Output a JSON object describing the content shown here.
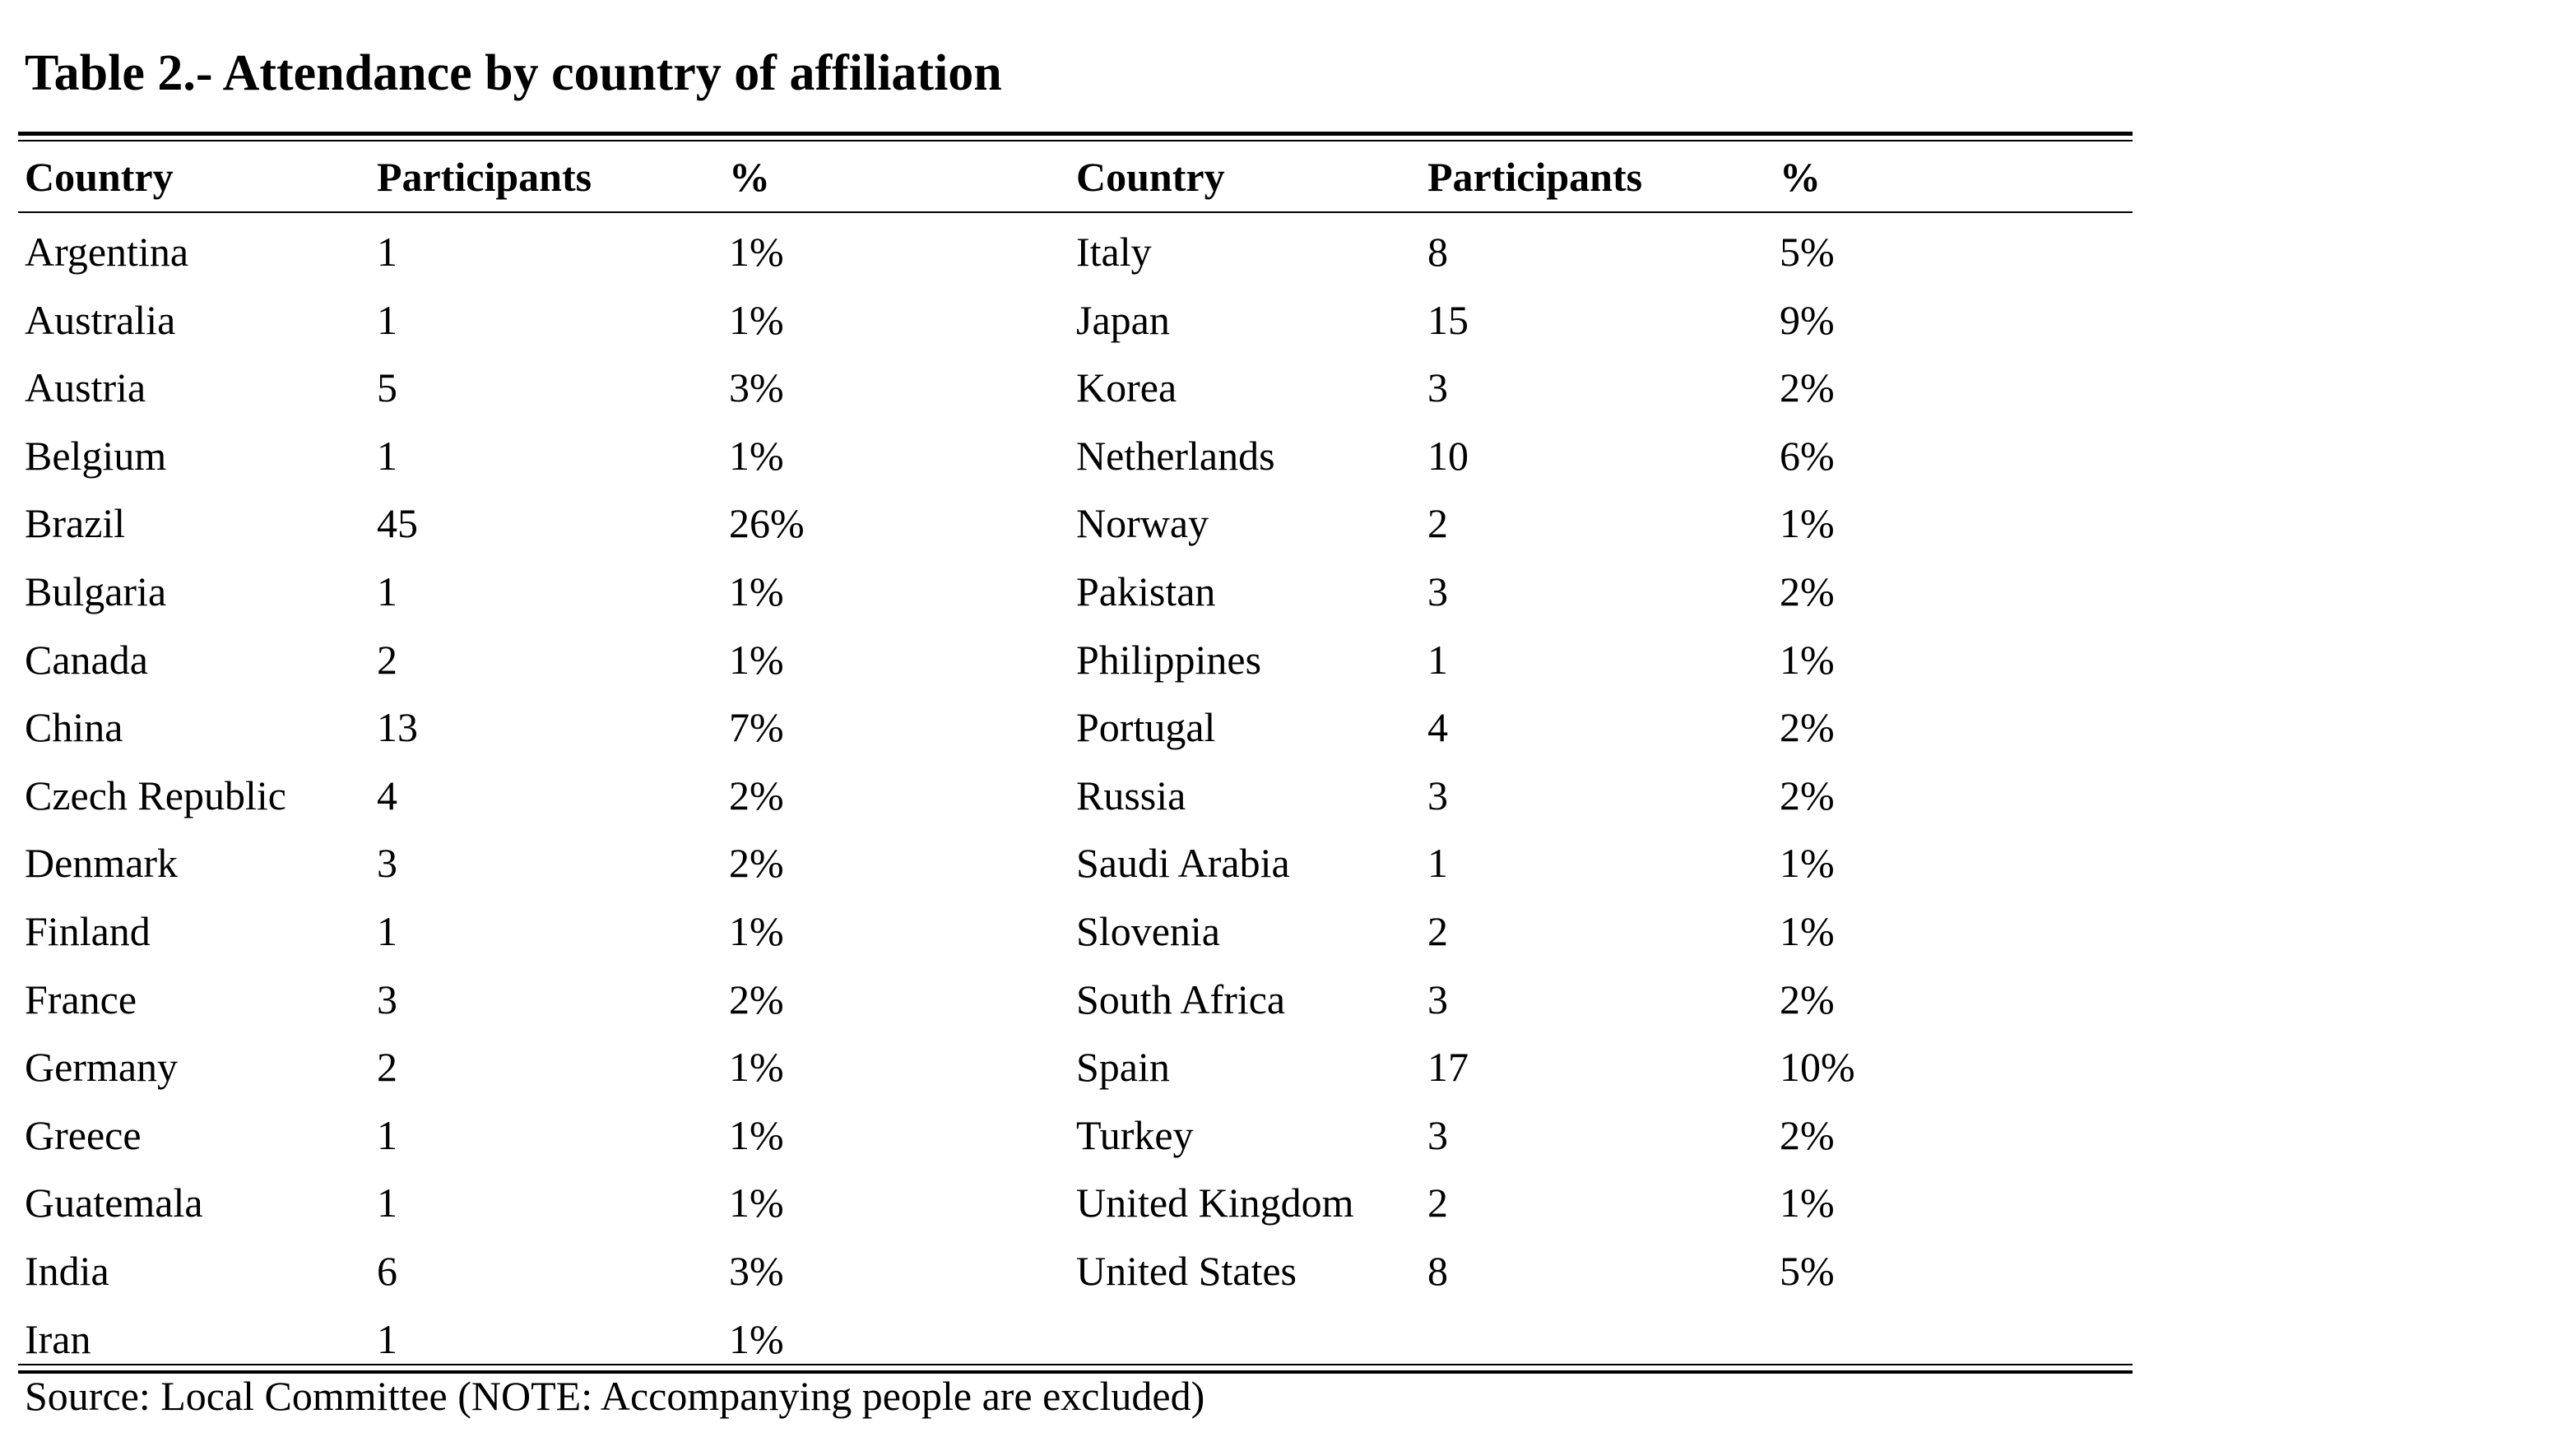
{
  "title": "Table 2.- Attendance by country of affiliation",
  "headers": {
    "left": {
      "country": "Country",
      "participants": "Participants",
      "percent": "%"
    },
    "right": {
      "country": "Country",
      "participants": "Participants",
      "percent": "%"
    }
  },
  "left_rows": [
    {
      "country": "Argentina",
      "participants": "1",
      "percent": "1%"
    },
    {
      "country": "Australia",
      "participants": "1",
      "percent": "1%"
    },
    {
      "country": "Austria",
      "participants": "5",
      "percent": "3%"
    },
    {
      "country": "Belgium",
      "participants": "1",
      "percent": "1%"
    },
    {
      "country": "Brazil",
      "participants": "45",
      "percent": "26%"
    },
    {
      "country": "Bulgaria",
      "participants": "1",
      "percent": "1%"
    },
    {
      "country": "Canada",
      "participants": "2",
      "percent": "1%"
    },
    {
      "country": "China",
      "participants": "13",
      "percent": "7%"
    },
    {
      "country": "Czech Republic",
      "participants": "4",
      "percent": "2%"
    },
    {
      "country": "Denmark",
      "participants": "3",
      "percent": "2%"
    },
    {
      "country": "Finland",
      "participants": "1",
      "percent": "1%"
    },
    {
      "country": "France",
      "participants": "3",
      "percent": "2%"
    },
    {
      "country": "Germany",
      "participants": "2",
      "percent": "1%"
    },
    {
      "country": "Greece",
      "participants": "1",
      "percent": "1%"
    },
    {
      "country": "Guatemala",
      "participants": "1",
      "percent": "1%"
    },
    {
      "country": "India",
      "participants": "6",
      "percent": "3%"
    },
    {
      "country": "Iran",
      "participants": "1",
      "percent": "1%"
    }
  ],
  "right_rows": [
    {
      "country": "Italy",
      "participants": "8",
      "percent": "5%"
    },
    {
      "country": "Japan",
      "participants": "15",
      "percent": "9%"
    },
    {
      "country": "Korea",
      "participants": "3",
      "percent": "2%"
    },
    {
      "country": "Netherlands",
      "participants": "10",
      "percent": "6%"
    },
    {
      "country": "Norway",
      "participants": "2",
      "percent": "1%"
    },
    {
      "country": "Pakistan",
      "participants": "3",
      "percent": "2%"
    },
    {
      "country": "Philippines",
      "participants": "1",
      "percent": "1%"
    },
    {
      "country": "Portugal",
      "participants": "4",
      "percent": "2%"
    },
    {
      "country": "Russia",
      "participants": "3",
      "percent": "2%"
    },
    {
      "country": "Saudi Arabia",
      "participants": "1",
      "percent": "1%"
    },
    {
      "country": "Slovenia",
      "participants": "2",
      "percent": "1%"
    },
    {
      "country": "South Africa",
      "participants": "3",
      "percent": "2%"
    },
    {
      "country": "Spain",
      "participants": "17",
      "percent": "10%"
    },
    {
      "country": "Turkey",
      "participants": "3",
      "percent": "2%"
    },
    {
      "country": "United Kingdom",
      "participants": "2",
      "percent": "1%"
    },
    {
      "country": "United States",
      "participants": "8",
      "percent": "5%"
    }
  ],
  "source": "Source: Local Committee (NOTE: Accompanying people are excluded)"
}
